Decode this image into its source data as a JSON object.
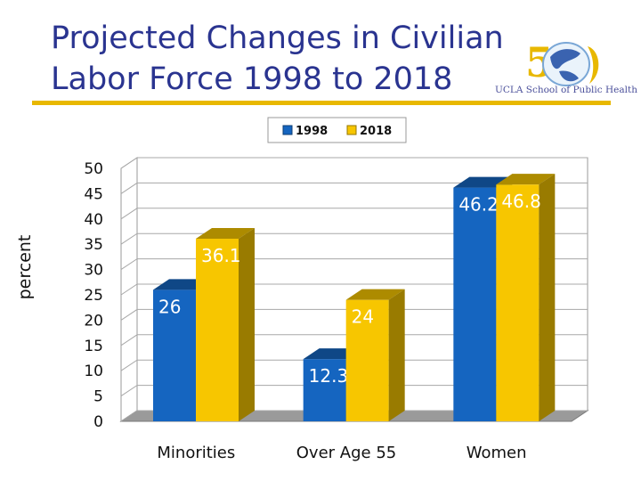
{
  "slide": {
    "title": "Projected Changes in Civilian\nLabor Force 1998 to 2018",
    "logo_caption": "UCLA School of Public Health"
  },
  "colors": {
    "title": "#2a3490",
    "rule": "#e8b800",
    "series_1998": "#1565c0",
    "series_2018": "#f7c600"
  },
  "chart_data": {
    "type": "bar",
    "title": "Projected Changes in Civilian Labor Force 1998 to 2018",
    "xlabel": "",
    "ylabel": "percent",
    "ylim": [
      0,
      50
    ],
    "yticks": [
      "0",
      "5",
      "10",
      "15",
      "20",
      "25",
      "30",
      "35",
      "40",
      "45",
      "50"
    ],
    "grid": true,
    "legend_position": "top",
    "categories": [
      "Minorities",
      "Over Age 55",
      "Women"
    ],
    "series": [
      {
        "name": "1998",
        "values": [
          26,
          12.3,
          46.2
        ],
        "labels": [
          "26",
          "12.3",
          "46.2"
        ]
      },
      {
        "name": "2018",
        "values": [
          36.1,
          24,
          46.8
        ],
        "labels": [
          "36.1",
          "24",
          "46.8"
        ]
      }
    ]
  }
}
